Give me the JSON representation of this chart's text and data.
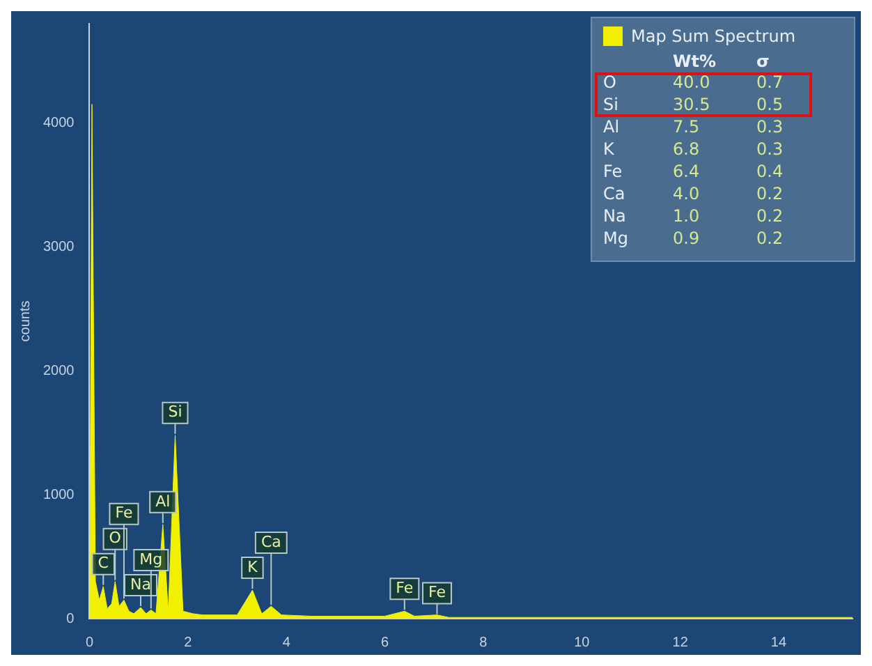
{
  "chart_data": {
    "type": "area",
    "ylabel": "counts",
    "x": [
      0,
      0.05,
      0.12,
      0.2,
      0.28,
      0.36,
      0.45,
      0.52,
      0.6,
      0.7,
      0.8,
      0.9,
      1.04,
      1.15,
      1.25,
      1.35,
      1.49,
      1.6,
      1.74,
      1.9,
      2.1,
      2.3,
      3.0,
      3.31,
      3.5,
      3.69,
      3.9,
      4.5,
      6.0,
      6.4,
      6.6,
      7.06,
      7.3,
      10,
      15.5
    ],
    "series": [
      {
        "name": "Map Sum Spectrum",
        "color": "#f0f000",
        "values": [
          0,
          4150,
          300,
          150,
          260,
          80,
          120,
          300,
          100,
          150,
          60,
          40,
          90,
          40,
          70,
          40,
          760,
          60,
          1480,
          60,
          40,
          30,
          30,
          230,
          40,
          100,
          30,
          20,
          20,
          60,
          20,
          30,
          10,
          10,
          10
        ]
      }
    ],
    "xlim": [
      0,
      15.5
    ],
    "xticks": [
      0,
      2,
      4,
      6,
      8,
      10,
      12,
      14
    ],
    "ylim": [
      0,
      4800
    ],
    "yticks": [
      0,
      1000,
      2000,
      3000,
      4000
    ],
    "grid": false,
    "legend": "top right",
    "annotations": [
      {
        "text": "C",
        "x": 0.28,
        "y": 260
      },
      {
        "text": "O",
        "x": 0.52,
        "y": 300
      },
      {
        "text": "Fe",
        "x": 0.7,
        "y": 150
      },
      {
        "text": "Na",
        "x": 1.04,
        "y": 90
      },
      {
        "text": "Mg",
        "x": 1.25,
        "y": 70
      },
      {
        "text": "Al",
        "x": 1.49,
        "y": 760
      },
      {
        "text": "Si",
        "x": 1.74,
        "y": 1480
      },
      {
        "text": "K",
        "x": 3.31,
        "y": 230
      },
      {
        "text": "Ca",
        "x": 3.69,
        "y": 100
      },
      {
        "text": "Fe",
        "x": 6.4,
        "y": 60
      },
      {
        "text": "Fe",
        "x": 7.06,
        "y": 25
      },
      "Wt%",
      "σ",
      "O",
      "40.0",
      "0.7",
      "Si",
      "30.5",
      "0.5",
      "Al",
      "7.5",
      "0.3",
      "K",
      "6.8",
      "0.3",
      "Fe",
      "6.4",
      "0.4",
      "Ca",
      "4.0",
      "0.2",
      "Na",
      "1.0",
      "0.2",
      "Mg",
      "0.9",
      "0.2"
    ]
  }
}
